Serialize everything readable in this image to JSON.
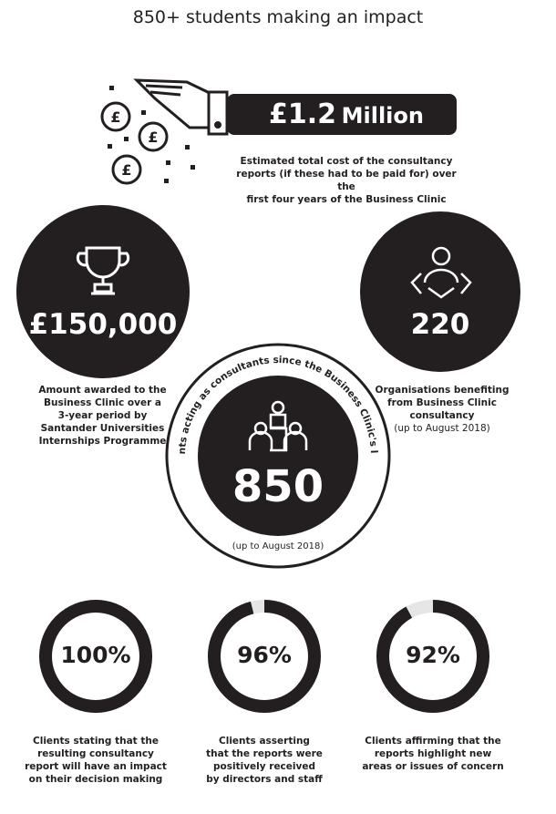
{
  "title": "850+ students making an impact",
  "million": {
    "value": "£1.2",
    "unit": "Million",
    "caption": [
      "Estimated total cost of the consultancy",
      "reports (if these had to be paid for) over the",
      "first four years of the Business Clinic"
    ],
    "icon": "hand-dropping-pound-coins-icon",
    "coin_symbol": "£"
  },
  "award": {
    "value": "£150,000",
    "icon": "trophy-icon",
    "caption": [
      "Amount awarded to the",
      "Business Clinic over a",
      "3-year period by",
      "Santander Universities",
      "Internships Programme"
    ]
  },
  "organisations": {
    "value": "220",
    "icon": "handshake-person-icon",
    "caption": [
      "Organisations benefiting",
      "from Business Clinic",
      "consultancy"
    ],
    "note": "(up to August 2018)"
  },
  "students": {
    "value": "850",
    "icon": "group-meeting-icon",
    "arc_text": "Students acting as consultants since the Business Clinic's launch",
    "note": "(up to August 2018)"
  },
  "stats": [
    {
      "value": "100%",
      "percent": 100,
      "caption": [
        "Clients stating that the",
        "resulting consultancy",
        "report will have an impact",
        "on their decision making"
      ]
    },
    {
      "value": "96%",
      "percent": 96,
      "caption": [
        "Clients asserting",
        "that the reports were",
        "positively received",
        "by directors and staff"
      ]
    },
    {
      "value": "92%",
      "percent": 92,
      "caption": [
        "Clients affirming that the",
        "reports highlight new",
        "areas or issues of concern"
      ]
    }
  ],
  "colors": {
    "dark": "#231f20",
    "track": "#e6e6e6"
  }
}
